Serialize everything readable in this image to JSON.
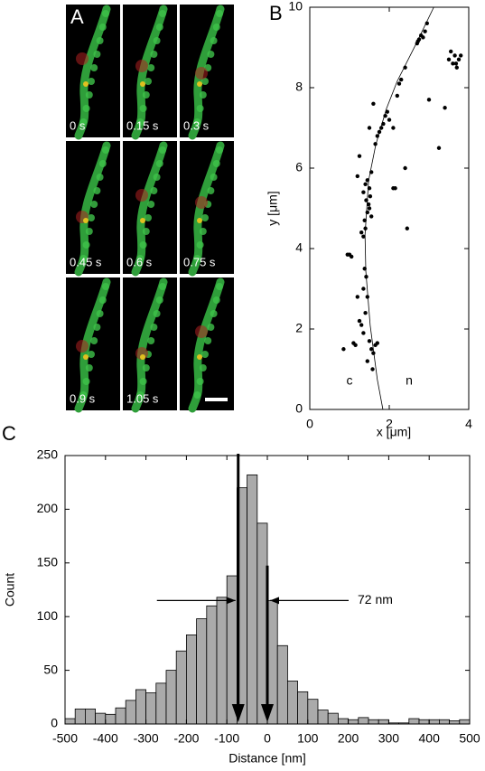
{
  "panel_a": {
    "label": "A",
    "frame_labels": [
      "0 s",
      "0.15 s",
      "0.3 s",
      "0.45 s",
      "0.6 s",
      "0.75 s",
      "0.9 s",
      "1.05 s",
      null
    ]
  },
  "chart_data": [
    {
      "type": "scatter",
      "panel_label": "B",
      "xlabel": "x [μm]",
      "ylabel": "y [μm]",
      "xlim": [
        0,
        4
      ],
      "xticks": [
        0,
        2,
        4
      ],
      "ylim": [
        0,
        10
      ],
      "yticks": [
        0,
        2,
        4,
        6,
        8,
        10
      ],
      "annotations": [
        {
          "text": "c",
          "x": 1.0,
          "y": 0.7
        },
        {
          "text": "n",
          "x": 2.5,
          "y": 0.7
        }
      ],
      "line_x": [
        1.84,
        1.7,
        1.52,
        1.41,
        1.39,
        1.48,
        1.66,
        1.93,
        2.2,
        2.66,
        3.12
      ],
      "line_y": [
        0,
        0.74,
        2.09,
        3.44,
        4.34,
        5.69,
        6.58,
        7.48,
        8.16,
        9.06,
        10
      ],
      "x": [
        1.55,
        1.6,
        1.58,
        1.5,
        1.45,
        1.65,
        1.35,
        1.3,
        0.85,
        1.1,
        1.15,
        1.7,
        1.4,
        1.45,
        1.35,
        1.42,
        1.38,
        1.2,
        1.25,
        1.0,
        1.05,
        0.95,
        1.35,
        1.4,
        1.38,
        1.45,
        1.5,
        1.48,
        1.52,
        1.5,
        1.45,
        1.4,
        1.55,
        1.42,
        1.3,
        1.55,
        1.35,
        1.2,
        1.25,
        2.1,
        2.15,
        2.45,
        2.4,
        1.65,
        1.7,
        1.75,
        1.85,
        1.8,
        1.9,
        1.95,
        2.0,
        1.6,
        1.5,
        2.1,
        2.2,
        2.3,
        2.25,
        2.4,
        2.7,
        2.75,
        2.8,
        2.85,
        2.9,
        2.72,
        2.95,
        3.0,
        3.4,
        3.25,
        3.5,
        3.6,
        3.65,
        3.7,
        3.75,
        3.8,
        3.55,
        3.68
      ],
      "y": [
        1.5,
        1.4,
        1.0,
        1.7,
        1.2,
        1.6,
        1.9,
        2.1,
        1.5,
        1.65,
        1.6,
        1.65,
        2.4,
        2.8,
        3.0,
        3.3,
        3.5,
        2.8,
        2.2,
        3.85,
        3.8,
        3.85,
        4.3,
        4.5,
        4.7,
        4.9,
        5.0,
        5.1,
        5.3,
        5.5,
        5.7,
        5.6,
        4.8,
        5.2,
        4.4,
        5.9,
        5.4,
        5.8,
        6.3,
        5.5,
        5.5,
        4.5,
        6.0,
        6.6,
        6.8,
        6.9,
        7.1,
        7.0,
        7.3,
        7.4,
        7.2,
        7.6,
        7.0,
        7.0,
        7.8,
        8.2,
        8.1,
        8.5,
        9.1,
        9.2,
        9.3,
        9.25,
        9.4,
        9.15,
        9.6,
        7.7,
        7.5,
        6.5,
        8.7,
        8.6,
        8.8,
        8.5,
        8.7,
        8.8,
        8.9,
        8.6
      ]
    },
    {
      "type": "histogram",
      "panel_label": "C",
      "xlabel": "Distance [nm]",
      "ylabel": "Count",
      "xlim": [
        -500,
        500
      ],
      "xticks": [
        -500,
        -400,
        -300,
        -200,
        -100,
        0,
        100,
        200,
        300,
        400,
        500
      ],
      "ylim": [
        0,
        250
      ],
      "yticks": [
        0,
        50,
        100,
        150,
        200,
        250
      ],
      "bins": [
        -500,
        -475,
        -450,
        -425,
        -400,
        -375,
        -350,
        -325,
        -300,
        -275,
        -250,
        -225,
        -200,
        -175,
        -150,
        -125,
        -100,
        -75,
        -50,
        -25,
        0,
        25,
        50,
        75,
        100,
        125,
        150,
        175,
        200,
        225,
        250,
        275,
        300,
        325,
        350,
        375,
        400,
        425,
        450,
        475,
        500
      ],
      "values": [
        5,
        14,
        14,
        10,
        9,
        15,
        22,
        32,
        29,
        38,
        50,
        68,
        83,
        98,
        110,
        118,
        138,
        220,
        232,
        187,
        115,
        73,
        40,
        30,
        23,
        13,
        10,
        5,
        4,
        6,
        4,
        4,
        1,
        1,
        5,
        4,
        4,
        4,
        3,
        4
      ],
      "color": "#aaaaaa",
      "markers": [
        -72,
        0
      ],
      "marker_label": "72 nm"
    }
  ]
}
